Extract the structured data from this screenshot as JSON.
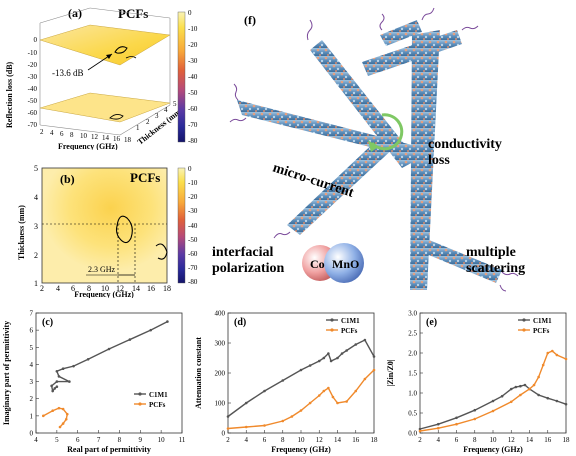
{
  "panel_a": {
    "label": "(a)",
    "title": "PCFs",
    "ylabel": "Reflection loss (dB)",
    "yticks": [
      "0",
      "-10",
      "-20",
      "-30",
      "-40",
      "-50",
      "-60",
      "-70",
      "-80"
    ],
    "xlabel": "Frequency (GHz)",
    "xticks": [
      "2",
      "4",
      "6",
      "8",
      "10",
      "12",
      "14",
      "16",
      "18"
    ],
    "zlabel": "Thickness (mm)",
    "zticks": [
      "1",
      "2",
      "3",
      "4",
      "5"
    ],
    "annotation": "-13.6 dB",
    "colorbar_ticks": [
      "0",
      "-10",
      "-20",
      "-30",
      "-40",
      "-50",
      "-60",
      "-70",
      "-80"
    ]
  },
  "panel_b": {
    "label": "(b)",
    "title": "PCFs",
    "ylabel": "Thickness (mm)",
    "yticks": [
      "5",
      "4",
      "3",
      "2",
      "1"
    ],
    "xlabel": "Frequency (GHz)",
    "xticks": [
      "2",
      "4",
      "6",
      "8",
      "10",
      "12",
      "14",
      "16",
      "18"
    ],
    "annotation": "2.3 GHz",
    "colorbar_ticks": [
      "0",
      "-10",
      "-20",
      "-30",
      "-40",
      "-50",
      "-60",
      "-70",
      "-80"
    ]
  },
  "panel_f": {
    "label": "(f)",
    "labels": {
      "conductivity": "conductivity\nloss",
      "micro_current": "micro-current",
      "interfacial": "interfacial\npolarization",
      "multiple": "multiple\nscattering",
      "co": "Co",
      "mno": "MnO"
    }
  },
  "chart_data": [
    {
      "type": "line",
      "label": "(c)",
      "xlabel": "Real part of permittivity",
      "ylabel": "Imaginary part of permittivity",
      "xticks": [
        "4",
        "5",
        "6",
        "7",
        "8",
        "9",
        "10",
        "11"
      ],
      "yticks": [
        "0",
        "1",
        "2",
        "3",
        "4",
        "5",
        "6",
        "7"
      ],
      "xlim": [
        4,
        11
      ],
      "ylim": [
        0,
        7
      ],
      "series": [
        {
          "name": "C1M1",
          "color": "#555555",
          "x": [
            10.3,
            9.5,
            8.5,
            7.5,
            6.5,
            5.8,
            5.3,
            5.0,
            5.1,
            5.6,
            5.0,
            4.75,
            4.8,
            4.9,
            5.0
          ],
          "y": [
            6.5,
            6.0,
            5.45,
            4.9,
            4.3,
            3.9,
            3.75,
            3.6,
            3.3,
            3.0,
            3.0,
            2.75,
            2.45,
            2.6,
            2.7
          ]
        },
        {
          "name": "PCFs",
          "color": "#f08a2c",
          "x": [
            4.35,
            4.8,
            5.1,
            5.3,
            5.5,
            5.45,
            5.3,
            5.15
          ],
          "y": [
            1.0,
            1.3,
            1.45,
            1.4,
            1.1,
            0.8,
            0.55,
            0.35
          ]
        }
      ],
      "legend": "right"
    },
    {
      "type": "line",
      "label": "(d)",
      "xlabel": "Frequency (GHz)",
      "ylabel": "Attenuation constant",
      "xticks": [
        "2",
        "4",
        "6",
        "8",
        "10",
        "12",
        "14",
        "16",
        "18"
      ],
      "yticks": [
        "0",
        "100",
        "200",
        "300",
        "400"
      ],
      "xlim": [
        2,
        18
      ],
      "ylim": [
        0,
        400
      ],
      "series": [
        {
          "name": "C1M1",
          "color": "#555555",
          "x": [
            2,
            4,
            6,
            8,
            10,
            11,
            12,
            12.5,
            13,
            13.3,
            14,
            14.5,
            15,
            16,
            17,
            18
          ],
          "y": [
            55,
            100,
            140,
            175,
            210,
            225,
            240,
            250,
            265,
            240,
            250,
            265,
            275,
            295,
            310,
            255
          ]
        },
        {
          "name": "PCFs",
          "color": "#f08a2c",
          "x": [
            2,
            4,
            6,
            8,
            9,
            10,
            11,
            12,
            12.5,
            13,
            13.5,
            14,
            15,
            16,
            17,
            18
          ],
          "y": [
            15,
            20,
            25,
            40,
            55,
            75,
            100,
            125,
            140,
            150,
            120,
            100,
            105,
            140,
            180,
            210
          ]
        }
      ],
      "legend": "top-right"
    },
    {
      "type": "line",
      "label": "(e)",
      "xlabel": "Frequency (GHz)",
      "ylabel": "|Zin/Z0|",
      "xticks": [
        "2",
        "4",
        "6",
        "8",
        "10",
        "12",
        "14",
        "16",
        "18"
      ],
      "yticks": [
        "0.0",
        "0.5",
        "1.0",
        "1.5",
        "2.0",
        "2.5",
        "3.0"
      ],
      "xlim": [
        2,
        18
      ],
      "ylim": [
        0,
        3
      ],
      "series": [
        {
          "name": "C1M1",
          "color": "#555555",
          "x": [
            2,
            4,
            6,
            8,
            10,
            11,
            12,
            12.5,
            13,
            13.5,
            14,
            15,
            16,
            17,
            18
          ],
          "y": [
            0.1,
            0.22,
            0.38,
            0.57,
            0.8,
            0.92,
            1.1,
            1.15,
            1.17,
            1.2,
            1.1,
            0.95,
            0.87,
            0.8,
            0.72
          ]
        },
        {
          "name": "PCFs",
          "color": "#f08a2c",
          "x": [
            2,
            4,
            6,
            8,
            10,
            12,
            13,
            14,
            14.5,
            15,
            15.5,
            16,
            16.5,
            17,
            18
          ],
          "y": [
            0.05,
            0.12,
            0.22,
            0.35,
            0.55,
            0.78,
            0.95,
            1.1,
            1.2,
            1.4,
            1.7,
            2.0,
            2.05,
            1.95,
            1.85
          ]
        }
      ],
      "legend": "top-right"
    }
  ]
}
